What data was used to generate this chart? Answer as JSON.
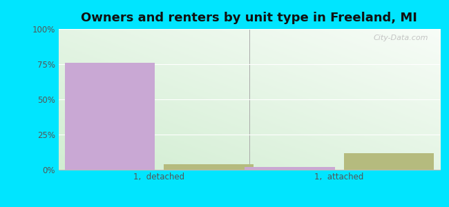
{
  "title": "Owners and renters by unit type in Freeland, MI",
  "categories": [
    "1,  detached",
    "1,  attached"
  ],
  "owner_values": [
    76,
    2
  ],
  "renter_values": [
    4,
    12
  ],
  "owner_color": "#c9a8d4",
  "renter_color": "#b5bb7e",
  "ylim": [
    0,
    100
  ],
  "yticks": [
    0,
    25,
    50,
    75,
    100
  ],
  "ytick_labels": [
    "0%",
    "25%",
    "50%",
    "75%",
    "100%"
  ],
  "outer_color": "#00e5ff",
  "bar_width": 0.25,
  "group_positions": [
    0.28,
    0.78
  ],
  "xlim": [
    0.0,
    1.06
  ],
  "title_fontsize": 13,
  "tick_fontsize": 8.5,
  "legend_fontsize": 9,
  "watermark": "City-Data.com"
}
